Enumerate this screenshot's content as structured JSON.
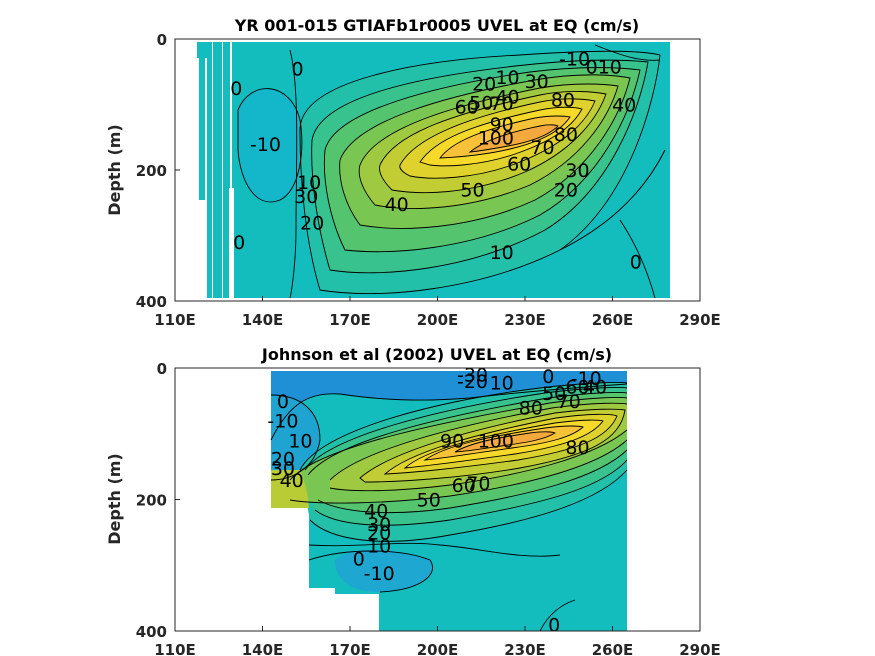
{
  "colors": {
    "low": "#1f8fd6",
    "mid_low": "#11bdbf",
    "mid": "#4ec473",
    "mid_high": "#aacd3a",
    "high": "#f6dc2a",
    "peak": "#f4a73d",
    "contour": "#000000",
    "axis": "#262626"
  },
  "chart_data": [
    {
      "type": "heatmap",
      "title": "YR 001-015 GTIAFb1r0005 UVEL at EQ (cm/s)",
      "xlabel": "",
      "ylabel": "Depth (m)",
      "xlim": [
        110,
        290
      ],
      "ylim": [
        400,
        0
      ],
      "x_ticks": [
        "110E",
        "140E",
        "170E",
        "200E",
        "230E",
        "260E",
        "290E"
      ],
      "y_ticks": [
        "0",
        "200",
        "400"
      ],
      "core": {
        "lon": 224,
        "depth": 150,
        "max_speed": 105
      },
      "contour_levels": [
        -10,
        0,
        10,
        20,
        30,
        40,
        50,
        60,
        70,
        80,
        90,
        100
      ],
      "contour_labels": [
        {
          "lon": 247,
          "depth": 30,
          "text": "-10"
        },
        {
          "lon": 257,
          "depth": 42,
          "text": "010"
        },
        {
          "lon": 224,
          "depth": 58,
          "text": "10"
        },
        {
          "lon": 216,
          "depth": 68,
          "text": "20"
        },
        {
          "lon": 234,
          "depth": 64,
          "text": "30"
        },
        {
          "lon": 224,
          "depth": 88,
          "text": "40"
        },
        {
          "lon": 215,
          "depth": 97,
          "text": "50"
        },
        {
          "lon": 210,
          "depth": 103,
          "text": "60"
        },
        {
          "lon": 222,
          "depth": 98,
          "text": "70"
        },
        {
          "lon": 243,
          "depth": 92,
          "text": "80"
        },
        {
          "lon": 222,
          "depth": 130,
          "text": "90"
        },
        {
          "lon": 220,
          "depth": 150,
          "text": "100"
        },
        {
          "lon": 244,
          "depth": 145,
          "text": "80"
        },
        {
          "lon": 236,
          "depth": 165,
          "text": "70"
        },
        {
          "lon": 228,
          "depth": 190,
          "text": "60"
        },
        {
          "lon": 212,
          "depth": 230,
          "text": "50"
        },
        {
          "lon": 186,
          "depth": 252,
          "text": "40"
        },
        {
          "lon": 156,
          "depth": 218,
          "text": "10"
        },
        {
          "lon": 155,
          "depth": 240,
          "text": "30"
        },
        {
          "lon": 157,
          "depth": 280,
          "text": "20"
        },
        {
          "lon": 248,
          "depth": 200,
          "text": "30"
        },
        {
          "lon": 244,
          "depth": 230,
          "text": "20"
        },
        {
          "lon": 222,
          "depth": 325,
          "text": "10"
        },
        {
          "lon": 264,
          "depth": 100,
          "text": "40"
        },
        {
          "lon": 141,
          "depth": 160,
          "text": "-10"
        },
        {
          "lon": 131,
          "depth": 75,
          "text": "0"
        },
        {
          "lon": 132,
          "depth": 310,
          "text": "0"
        },
        {
          "lon": 268,
          "depth": 340,
          "text": "0"
        },
        {
          "lon": 152,
          "depth": 45,
          "text": "0"
        }
      ]
    },
    {
      "type": "heatmap",
      "title": "Johnson et al (2002) UVEL at EQ (cm/s)",
      "xlabel": "",
      "ylabel": "Depth (m)",
      "xlim": [
        110,
        290
      ],
      "ylim": [
        400,
        0
      ],
      "x_ticks": [
        "110E",
        "140E",
        "170E",
        "200E",
        "230E",
        "260E",
        "290E"
      ],
      "y_ticks": [
        "0",
        "200",
        "400"
      ],
      "core": {
        "lon": 222,
        "depth": 140,
        "max_speed": 105
      },
      "contour_levels": [
        -30,
        -20,
        -10,
        0,
        10,
        20,
        30,
        40,
        50,
        60,
        70,
        80,
        90,
        100
      ],
      "contour_labels": [
        {
          "lon": 212,
          "depth": 10,
          "text": "-30"
        },
        {
          "lon": 212,
          "depth": 20,
          "text": "-20"
        },
        {
          "lon": 222,
          "depth": 22,
          "text": "10"
        },
        {
          "lon": 238,
          "depth": 12,
          "text": "0"
        },
        {
          "lon": 251,
          "depth": 15,
          "text": "-10"
        },
        {
          "lon": 240,
          "depth": 38,
          "text": "50"
        },
        {
          "lon": 248,
          "depth": 28,
          "text": "60"
        },
        {
          "lon": 254,
          "depth": 28,
          "text": "40"
        },
        {
          "lon": 245,
          "depth": 50,
          "text": "70"
        },
        {
          "lon": 232,
          "depth": 60,
          "text": "80"
        },
        {
          "lon": 220,
          "depth": 110,
          "text": "100"
        },
        {
          "lon": 205,
          "depth": 110,
          "text": "90"
        },
        {
          "lon": 248,
          "depth": 120,
          "text": "80"
        },
        {
          "lon": 214,
          "depth": 175,
          "text": "70"
        },
        {
          "lon": 209,
          "depth": 178,
          "text": "60"
        },
        {
          "lon": 197,
          "depth": 200,
          "text": "50"
        },
        {
          "lon": 179,
          "depth": 217,
          "text": "40"
        },
        {
          "lon": 180,
          "depth": 237,
          "text": "30"
        },
        {
          "lon": 180,
          "depth": 250,
          "text": "20"
        },
        {
          "lon": 180,
          "depth": 270,
          "text": "10"
        },
        {
          "lon": 173,
          "depth": 290,
          "text": "0"
        },
        {
          "lon": 180,
          "depth": 312,
          "text": "-10"
        },
        {
          "lon": 147,
          "depth": 50,
          "text": "0"
        },
        {
          "lon": 147,
          "depth": 80,
          "text": "-10"
        },
        {
          "lon": 153,
          "depth": 110,
          "text": "10"
        },
        {
          "lon": 147,
          "depth": 138,
          "text": "20"
        },
        {
          "lon": 147,
          "depth": 152,
          "text": "30"
        },
        {
          "lon": 150,
          "depth": 170,
          "text": "40"
        },
        {
          "lon": 240,
          "depth": 390,
          "text": "0"
        }
      ]
    }
  ]
}
